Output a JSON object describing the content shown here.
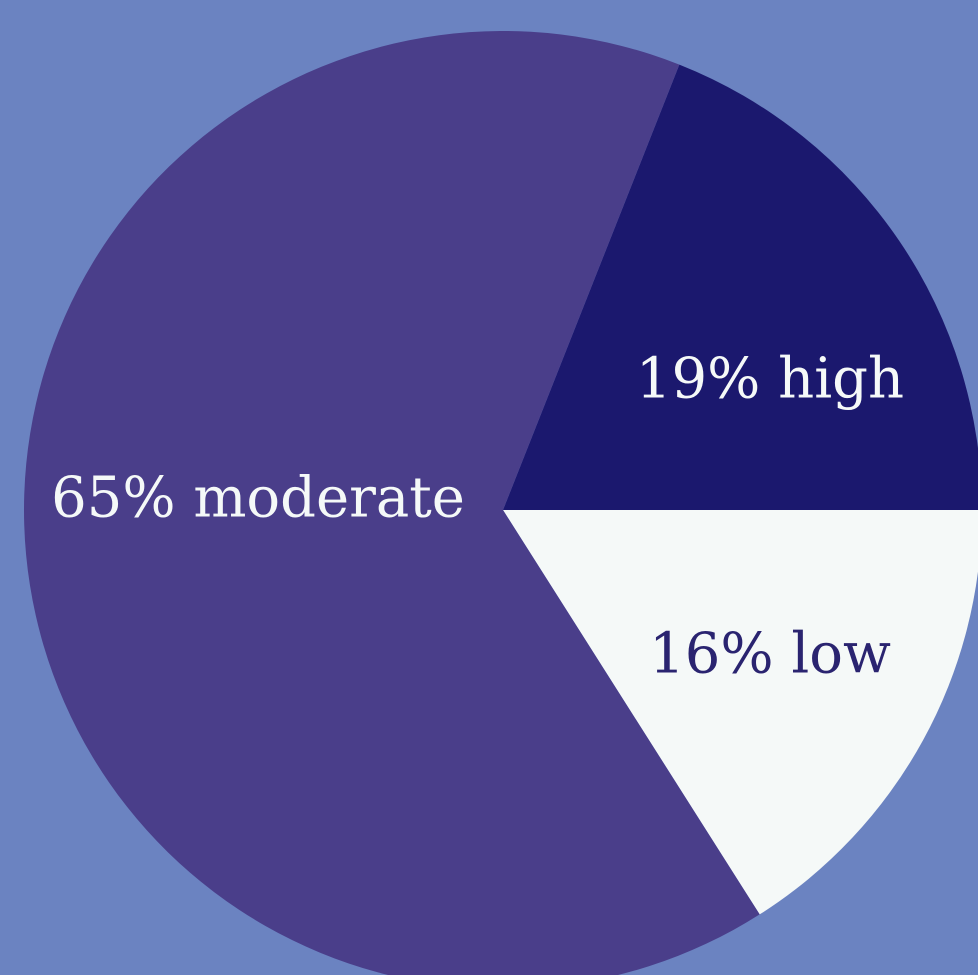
{
  "background": "#6b83c1",
  "chart_data": {
    "type": "pie",
    "title": "",
    "slices": [
      {
        "label": "19% high",
        "value": 19,
        "color": "#1b186e",
        "text_color": "#f5f9f8"
      },
      {
        "label": "16% low",
        "value": 16,
        "color": "#f5f9f8",
        "text_color": "#2a2470"
      },
      {
        "label": "65% moderate",
        "value": 65,
        "color": "#4a3e8a",
        "text_color": "#f5f9f8"
      }
    ],
    "start_direction": "east",
    "order": "counterclockwise-first-slice"
  }
}
